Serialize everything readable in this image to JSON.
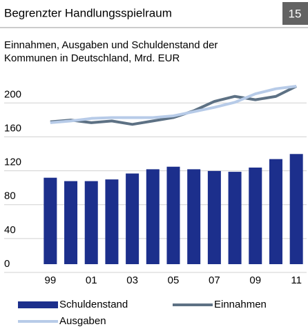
{
  "header": {
    "title": "Begrenzter Handlungsspielraum",
    "page": "15"
  },
  "chart_data": {
    "type": "bar",
    "subtitle": [
      "Einnahmen, Ausgaben und Schuldenstand der",
      "Kommunen in Deutschland, Mrd. EUR"
    ],
    "categories": [
      "99",
      null,
      "01",
      null,
      "03",
      null,
      "05",
      null,
      "07",
      null,
      "09",
      null,
      "11"
    ],
    "series": [
      {
        "name": "Schuldenstand",
        "type": "bar",
        "color": "#1c2f8c",
        "values": [
          102,
          98,
          98,
          100,
          107,
          112,
          115,
          112,
          110,
          109,
          114,
          124,
          130
        ]
      },
      {
        "name": "Einnahmen",
        "type": "line",
        "color": "#5d7184",
        "values": [
          168,
          170,
          167,
          169,
          165,
          169,
          173,
          181,
          192,
          198,
          194,
          198,
          210
        ]
      },
      {
        "name": "Ausgaben",
        "type": "line",
        "color": "#b7cbe8",
        "values": [
          167,
          169,
          172,
          173,
          173,
          173,
          175,
          180,
          185,
          191,
          201,
          207,
          210
        ]
      }
    ],
    "ylim": [
      0,
      210
    ],
    "yticks": [
      0,
      40,
      80,
      120,
      160,
      200
    ],
    "grid": true
  }
}
